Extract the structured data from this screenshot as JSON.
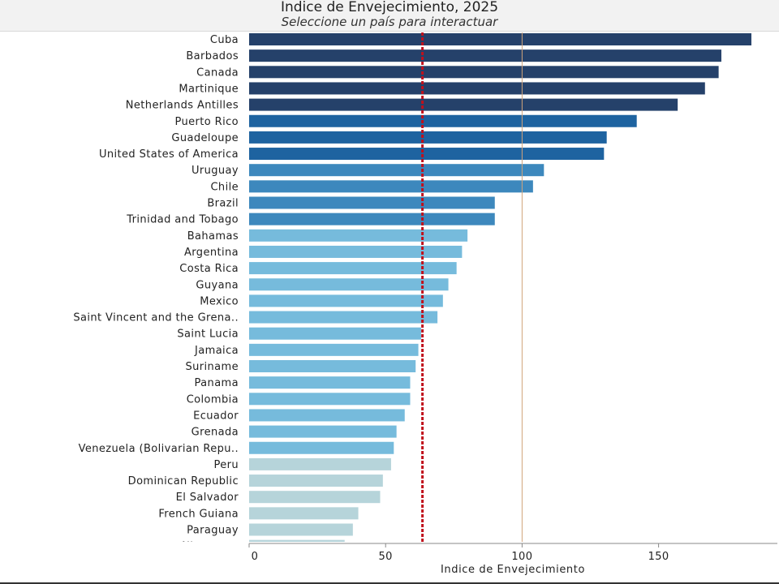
{
  "header": {
    "title": "Indice de Envejecimiento, 2025",
    "subtitle": "Seleccione un país para interactuar"
  },
  "chart_data": {
    "type": "bar",
    "orientation": "horizontal",
    "title": "Indice de Envejecimiento, 2025",
    "subtitle": "Seleccione un país para interactuar",
    "xlabel": "Indice de Envejecimiento",
    "ylabel": "",
    "xlim": [
      0,
      195
    ],
    "xticks": [
      0,
      50,
      100,
      150
    ],
    "reference_lines": [
      {
        "value": 63.5,
        "style": "dashed",
        "color": "#c0101c"
      },
      {
        "value": 100,
        "style": "solid",
        "color": "#d2a47a"
      }
    ],
    "categories": [
      "Cuba",
      "Barbados",
      "Canada",
      "Martinique",
      "Netherlands Antilles",
      "Puerto Rico",
      "Guadeloupe",
      "United States of America",
      "Uruguay",
      "Chile",
      "Brazil",
      "Trinidad and Tobago",
      "Bahamas",
      "Argentina",
      "Costa Rica",
      "Guyana",
      "Mexico",
      "Saint Vincent and the Grena..",
      "Saint Lucia",
      "Jamaica",
      "Suriname",
      "Panama",
      "Colombia",
      "Ecuador",
      "Grenada",
      "Venezuela (Bolivarian Repu..",
      "Peru",
      "Dominican Republic",
      "El Salvador",
      "French Guiana",
      "Paraguay",
      "Nicaragua"
    ],
    "values": [
      184,
      173,
      172,
      167,
      157,
      142,
      131,
      130,
      108,
      104,
      90,
      90,
      80,
      78,
      76,
      73,
      71,
      69,
      63,
      62,
      61,
      59,
      59,
      57,
      54,
      53,
      52,
      49,
      48,
      40,
      38,
      35
    ],
    "colors": [
      "#25416a",
      "#25416a",
      "#25416a",
      "#25416a",
      "#25416a",
      "#1e63a0",
      "#1e63a0",
      "#1e63a0",
      "#3d88bd",
      "#3d88bd",
      "#3d88bd",
      "#3d88bd",
      "#76bbdc",
      "#76bbdc",
      "#76bbdc",
      "#76bbdc",
      "#76bbdc",
      "#76bbdc",
      "#76bbdc",
      "#76bbdc",
      "#76bbdc",
      "#76bbdc",
      "#76bbdc",
      "#76bbdc",
      "#76bbdc",
      "#76bbdc",
      "#b6d4da",
      "#b6d4da",
      "#b6d4da",
      "#b6d4da",
      "#b6d4da",
      "#b6d4da"
    ]
  }
}
